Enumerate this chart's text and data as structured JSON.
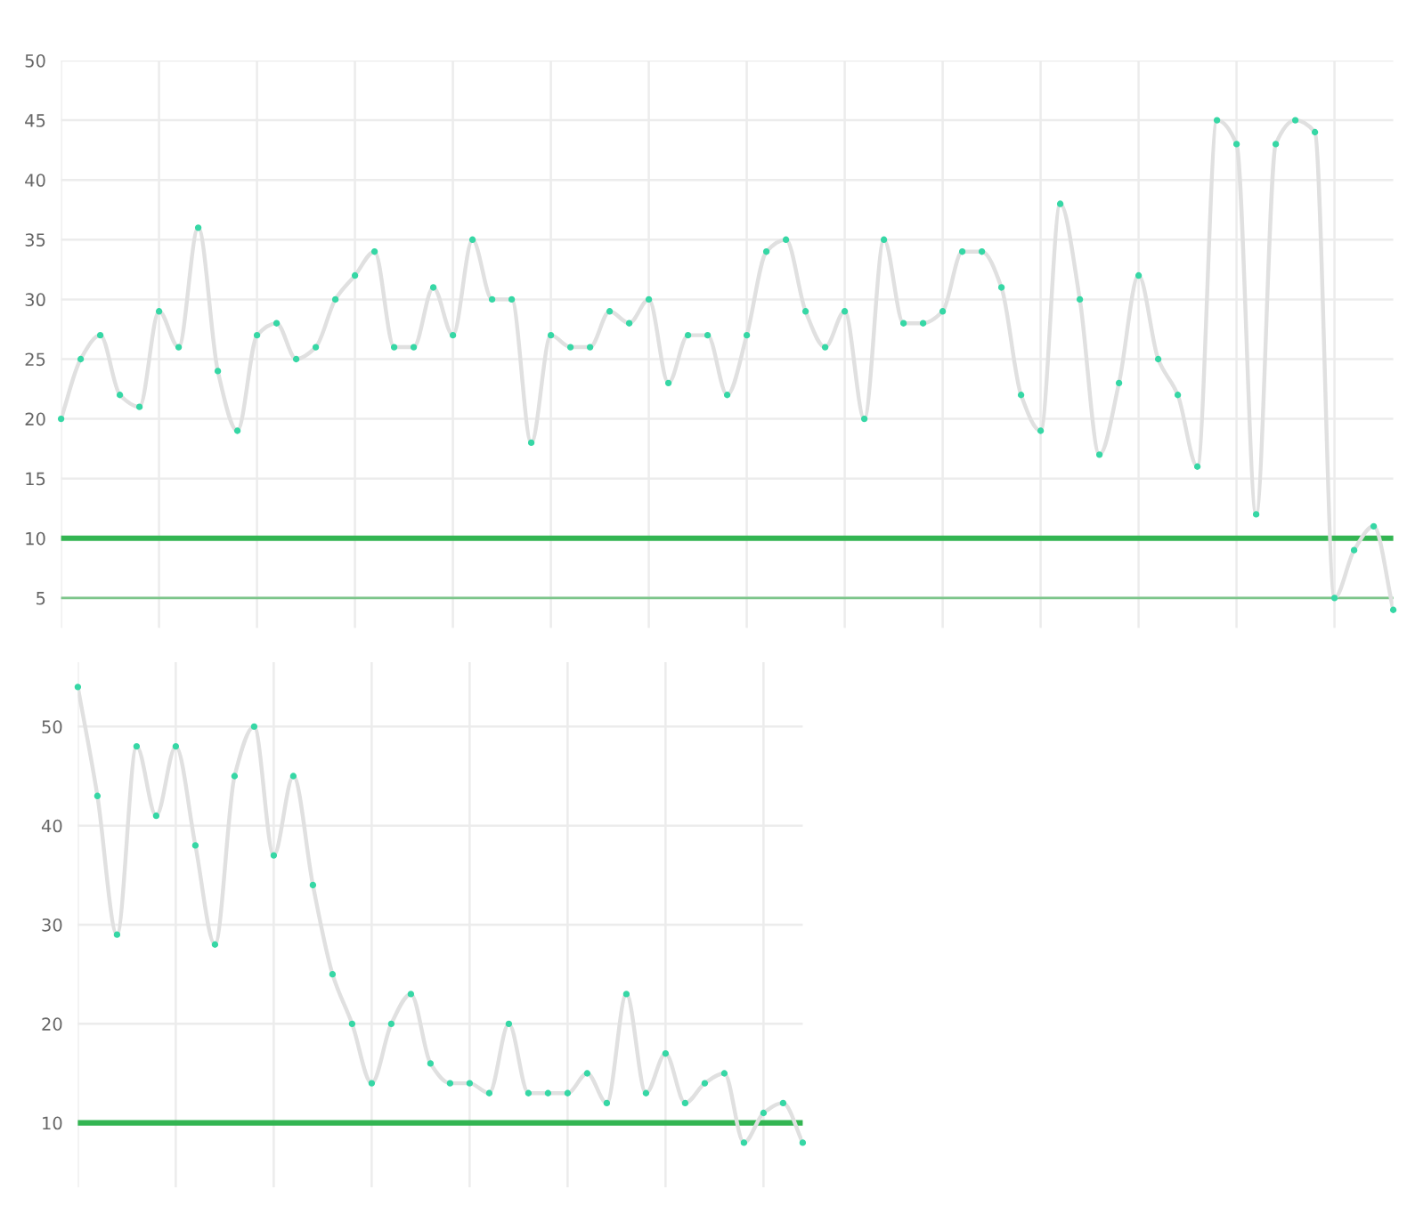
{
  "chart_data": [
    {
      "type": "line",
      "categories": [
        null,
        null,
        null,
        null,
        null,
        null,
        null,
        null,
        null,
        null,
        null,
        null,
        null,
        null,
        null,
        null,
        null,
        null,
        null,
        null,
        null,
        null,
        null,
        null,
        null,
        null,
        null,
        null,
        null,
        null,
        null,
        null,
        null,
        null,
        null,
        null,
        null,
        null,
        null,
        null,
        null,
        null,
        null,
        null,
        null,
        null,
        null,
        null,
        null,
        null,
        null,
        null,
        null,
        null,
        null,
        null,
        null,
        null,
        null,
        null,
        null,
        null,
        null,
        null,
        null,
        null,
        null,
        null,
        null
      ],
      "series": [
        {
          "color": "#e0e0e0",
          "colors": [
            "#36d7a5",
            "#36d7a5",
            "#36d7a5",
            "#36d7a5",
            "#36d7a5",
            "#36d7a5",
            "#36d7a5",
            "#36d7a5",
            "#36d7a5",
            "#36d7a5",
            "#36d7a5",
            "#36d7a5",
            "#36d7a5",
            "#36d7a5",
            "#36d7a5",
            "#36d7a5",
            "#36d7a5",
            "#36d7a5",
            "#36d7a5",
            "#36d7a5",
            "#36d7a5",
            "#36d7a5",
            "#36d7a5",
            "#36d7a5",
            "#36d7a5",
            "#36d7a5",
            "#36d7a5",
            "#36d7a5",
            "#36d7a5",
            "#36d7a5",
            "#36d7a5",
            "#36d7a5",
            "#36d7a5",
            "#36d7a5",
            "#36d7a5",
            "#36d7a5",
            "#36d7a5",
            "#36d7a5",
            "#36d7a5",
            "#36d7a5",
            "#36d7a5",
            "#36d7a5",
            "#36d7a5",
            "#36d7a5",
            "#36d7a5",
            "#36d7a5",
            "#36d7a5",
            "#36d7a5",
            "#36d7a5",
            "#36d7a5",
            "#36d7a5",
            "#36d7a5",
            "#36d7a5",
            "#36d7a5",
            "#36d7a5",
            "#36d7a5",
            "#36d7a5",
            "#36d7a5",
            "#36d7a5",
            "#36d7a5",
            "#36d7a5",
            "#36d7a5",
            "#36d7a5",
            "#36d7a5",
            "#36d7a5",
            "#36d7a5",
            "#36d7a5",
            "#36d7a5",
            "#36d7a5"
          ],
          "values": [
            20,
            25,
            27,
            22,
            21,
            29,
            26,
            36,
            24,
            19,
            27,
            28,
            25,
            26,
            30,
            32,
            34,
            26,
            26,
            31,
            27,
            35,
            30,
            30,
            18,
            27,
            26,
            26,
            29,
            28,
            30,
            23,
            27,
            27,
            22,
            27,
            34,
            35,
            29,
            26,
            29,
            20,
            35,
            28,
            28,
            29,
            34,
            34,
            31,
            22,
            19,
            38,
            30,
            17,
            23,
            32,
            25,
            22,
            16,
            45,
            43,
            12,
            43,
            45,
            44,
            5,
            9,
            11,
            4
          ]
        }
      ],
      "ylim": [
        2.5,
        50
      ],
      "yticks": [
        5,
        10,
        15,
        20,
        25,
        30,
        35,
        40,
        45,
        50
      ],
      "grid": true,
      "marker": "circle",
      "line_style": "solid",
      "tick_labels": "y",
      "ref_lines": [
        {
          "axis": "y",
          "value": 10,
          "color": "#33b552"
        },
        {
          "axis": "y",
          "value": 5,
          "color": "#7cc58a"
        }
      ]
    },
    {
      "type": "line",
      "categories": [
        null,
        null,
        null,
        null,
        null,
        null,
        null,
        null,
        null,
        null,
        null,
        null,
        null,
        null,
        null,
        null,
        null,
        null,
        null,
        null,
        null,
        null,
        null,
        null,
        null,
        null,
        null,
        null,
        null,
        null,
        null,
        null,
        null,
        null,
        null,
        null,
        null,
        null
      ],
      "series": [
        {
          "color": "#e0e0e0",
          "colors": [
            "#36d7a5",
            "#36d7a5",
            "#36d7a5",
            "#36d7a5",
            "#36d7a5",
            "#36d7a5",
            "#36d7a5",
            "#36d7a5",
            "#36d7a5",
            "#36d7a5",
            "#36d7a5",
            "#36d7a5",
            "#36d7a5",
            "#36d7a5",
            "#36d7a5",
            "#36d7a5",
            "#36d7a5",
            "#36d7a5",
            "#36d7a5",
            "#36d7a5",
            "#36d7a5",
            "#36d7a5",
            "#36d7a5",
            "#36d7a5",
            "#36d7a5",
            "#36d7a5",
            "#36d7a5",
            "#36d7a5",
            "#36d7a5",
            "#36d7a5",
            "#36d7a5",
            "#36d7a5",
            "#36d7a5",
            "#36d7a5",
            "#36d7a5",
            "#36d7a5",
            "#36d7a5",
            "#36d7a5"
          ],
          "values": [
            54,
            43,
            29,
            48,
            41,
            48,
            38,
            28,
            45,
            50,
            37,
            45,
            34,
            25,
            20,
            14,
            20,
            23,
            16,
            14,
            14,
            13,
            20,
            13,
            13,
            13,
            15,
            12,
            23,
            13,
            17,
            12,
            14,
            15,
            8,
            11,
            12,
            8
          ]
        }
      ],
      "ylim": [
        3.5,
        56.5
      ],
      "yticks": [
        10,
        20,
        30,
        40,
        50
      ],
      "grid": true,
      "marker": "circle",
      "line_style": "solid",
      "tick_labels": "y",
      "ref_lines": [
        {
          "axis": "y",
          "value": 10,
          "color": "#33b552"
        }
      ]
    }
  ]
}
